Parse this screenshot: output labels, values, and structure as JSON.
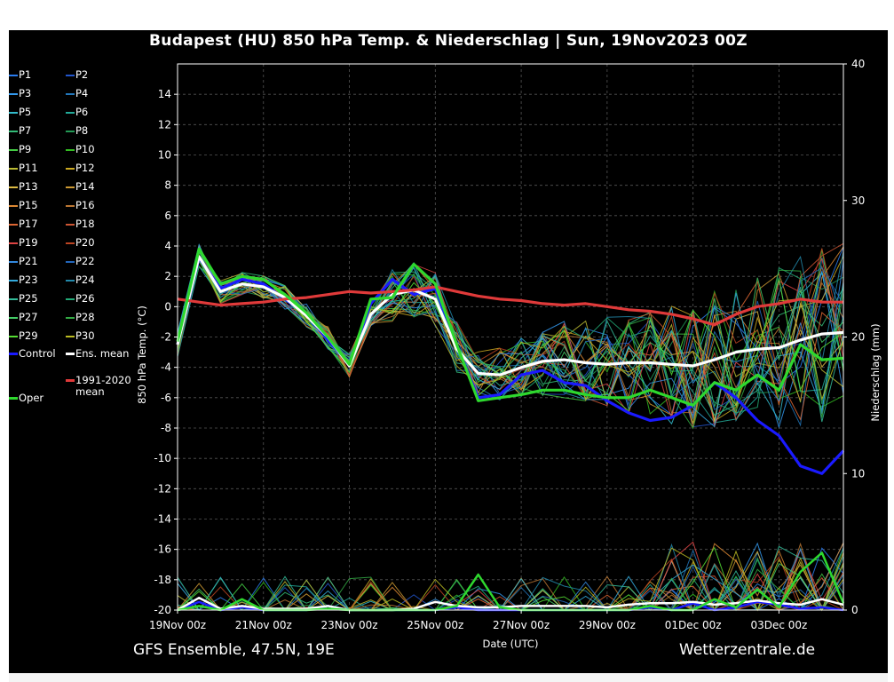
{
  "chart_data": {
    "type": "line",
    "title": "Budapest  (HU)  850 hPa Temp. & Niederschlag | Sun, 19Nov2023 00Z",
    "xlabel": "Date (UTC)",
    "ylabel": "850 hPa Temp. (°C)",
    "y2label": "Niederschlag (mm)",
    "x_range_days": [
      0,
      15.5
    ],
    "x_ticks": [
      {
        "day": 0,
        "label": "19Nov 00z"
      },
      {
        "day": 2,
        "label": "21Nov 00z"
      },
      {
        "day": 4,
        "label": "23Nov 00z"
      },
      {
        "day": 6,
        "label": "25Nov 00z"
      },
      {
        "day": 8,
        "label": "27Nov 00z"
      },
      {
        "day": 10,
        "label": "29Nov 00z"
      },
      {
        "day": 12,
        "label": "01Dec 00z"
      },
      {
        "day": 14,
        "label": "03Dec 00z"
      }
    ],
    "ylim": [
      -20,
      16
    ],
    "y_ticks": [
      14,
      12,
      10,
      8,
      6,
      4,
      2,
      0,
      -2,
      -4,
      -6,
      -8,
      -10,
      -12,
      -14,
      -16,
      -18,
      -20
    ],
    "y2lim": [
      0,
      40
    ],
    "y2_ticks": [
      0,
      10,
      20,
      30,
      40
    ],
    "grid": true,
    "legend_position": "left",
    "series": [
      {
        "name": "Control",
        "color": "#1a1aff",
        "type": "temperature",
        "x": [
          0,
          0.5,
          1,
          1.5,
          2,
          2.5,
          3,
          3.5,
          4,
          4.5,
          5,
          5.5,
          6,
          6.5,
          7,
          7.5,
          8,
          8.5,
          9,
          9.5,
          10,
          10.5,
          11,
          11.5,
          12,
          12.5,
          13,
          13.5,
          14,
          14.5,
          15,
          15.5
        ],
        "values": [
          -2.5,
          3.2,
          1.2,
          1.8,
          1.5,
          0.5,
          -0.5,
          -2.2,
          -3.8,
          0.2,
          1.8,
          0.8,
          1.2,
          -2.5,
          -6.0,
          -5.8,
          -4.5,
          -4.2,
          -5.0,
          -5.2,
          -6.2,
          -7.0,
          -7.5,
          -7.3,
          -6.5,
          -5.0,
          -6.0,
          -7.5,
          -8.5,
          -10.5,
          -11.0,
          -9.5
        ]
      },
      {
        "name": "Ens. mean",
        "color": "#ffffff",
        "type": "temperature",
        "x": [
          0,
          0.5,
          1,
          1.5,
          2,
          2.5,
          3,
          3.5,
          4,
          4.5,
          5,
          5.5,
          6,
          6.5,
          7,
          7.5,
          8,
          8.5,
          9,
          9.5,
          10,
          10.5,
          11,
          11.5,
          12,
          12.5,
          13,
          13.5,
          14,
          14.5,
          15,
          15.5
        ],
        "values": [
          -2.5,
          3.3,
          1.0,
          1.5,
          1.3,
          0.6,
          -0.6,
          -2.0,
          -3.9,
          -0.5,
          0.8,
          1.1,
          0.5,
          -2.8,
          -4.4,
          -4.5,
          -4.0,
          -3.6,
          -3.5,
          -3.7,
          -3.8,
          -3.7,
          -3.7,
          -3.8,
          -3.9,
          -3.5,
          -3.0,
          -2.8,
          -2.7,
          -2.2,
          -1.8,
          -1.7
        ]
      },
      {
        "name": "1991-2020 mean",
        "color": "#e03a3a",
        "type": "temperature",
        "x": [
          0,
          0.5,
          1,
          1.5,
          2,
          2.5,
          3,
          3.5,
          4,
          4.5,
          5,
          5.5,
          6,
          6.5,
          7,
          7.5,
          8,
          8.5,
          9,
          9.5,
          10,
          10.5,
          11,
          11.5,
          12,
          12.5,
          13,
          13.5,
          14,
          14.5,
          15,
          15.5
        ],
        "values": [
          0.5,
          0.3,
          0.1,
          0.2,
          0.3,
          0.5,
          0.6,
          0.8,
          1.0,
          0.9,
          1.0,
          1.1,
          1.3,
          1.0,
          0.7,
          0.5,
          0.4,
          0.2,
          0.1,
          0.2,
          0.0,
          -0.2,
          -0.3,
          -0.5,
          -0.8,
          -1.2,
          -0.5,
          0.0,
          0.2,
          0.5,
          0.3,
          0.3
        ]
      },
      {
        "name": "Oper",
        "color": "#2ed82e",
        "type": "temperature",
        "x": [
          0,
          0.5,
          1,
          1.5,
          2,
          2.5,
          3,
          3.5,
          4,
          4.5,
          5,
          5.5,
          6,
          6.5,
          7,
          7.5,
          8,
          8.5,
          9,
          9.5,
          10,
          10.5,
          11,
          11.5,
          12,
          12.5,
          13,
          13.5,
          14,
          14.5,
          15,
          15.5
        ],
        "values": [
          -2.3,
          3.8,
          1.5,
          2.0,
          1.8,
          0.8,
          -0.4,
          -2.0,
          -3.8,
          0.5,
          0.6,
          2.8,
          1.5,
          -2.5,
          -6.2,
          -6.0,
          -5.8,
          -5.5,
          -5.5,
          -5.8,
          -6.0,
          -6.0,
          -5.5,
          -6.0,
          -6.5,
          -5.0,
          -5.5,
          -4.5,
          -5.5,
          -2.5,
          -3.5,
          -3.4
        ]
      },
      {
        "name": "Control precipitation",
        "color": "#1a1aff",
        "type": "precipitation",
        "x": [
          0,
          0.5,
          1,
          1.5,
          2,
          2.5,
          3,
          3.5,
          4,
          4.5,
          5,
          5.5,
          6,
          6.5,
          7,
          7.5,
          8,
          8.5,
          9,
          9.5,
          10,
          10.5,
          11,
          11.5,
          12,
          12.5,
          13,
          13.5,
          14,
          14.5,
          15,
          15.5
        ],
        "values": [
          0,
          0.6,
          0,
          0.2,
          0,
          0,
          0,
          0.3,
          0,
          0,
          0,
          0,
          0,
          0.2,
          0,
          0,
          0,
          0,
          0,
          0,
          0,
          0,
          0.2,
          0,
          0.5,
          0,
          0.2,
          0.6,
          0.4,
          0.1,
          0.2,
          0
        ]
      },
      {
        "name": "Ens. mean precipitation",
        "color": "#ffffff",
        "type": "precipitation",
        "x": [
          0,
          0.5,
          1,
          1.5,
          2,
          2.5,
          3,
          3.5,
          4,
          4.5,
          5,
          5.5,
          6,
          6.5,
          7,
          7.5,
          8,
          8.5,
          9,
          9.5,
          10,
          10.5,
          11,
          11.5,
          12,
          12.5,
          13,
          13.5,
          14,
          14.5,
          15,
          15.5
        ],
        "values": [
          0,
          0.9,
          0.1,
          0.3,
          0.1,
          0.1,
          0.1,
          0.3,
          0,
          0,
          0,
          0.1,
          0.6,
          0.3,
          0.2,
          0.2,
          0.3,
          0.3,
          0.3,
          0.3,
          0.2,
          0.4,
          0.5,
          0.5,
          0.6,
          0.4,
          0.5,
          0.7,
          0.5,
          0.4,
          0.8,
          0.4
        ]
      },
      {
        "name": "Oper precipitation",
        "color": "#2ed82e",
        "type": "precipitation",
        "x": [
          0,
          0.5,
          1,
          1.5,
          2,
          2.5,
          3,
          3.5,
          4,
          4.5,
          5,
          5.5,
          6,
          6.5,
          7,
          7.5,
          8,
          8.5,
          9,
          9.5,
          10,
          10.5,
          11,
          11.5,
          12,
          12.5,
          13,
          13.5,
          14,
          14.5,
          15,
          15.5
        ],
        "values": [
          0,
          0.3,
          0,
          0.8,
          0,
          0,
          0,
          0.1,
          0,
          0,
          0,
          0,
          0,
          0.3,
          2.6,
          0.2,
          0,
          0,
          0,
          0,
          0,
          0,
          0.3,
          0,
          0,
          0.8,
          0.2,
          1.5,
          0.2,
          2.8,
          4.2,
          0.5
        ]
      }
    ]
  },
  "legend": {
    "members": [
      {
        "label": "P1",
        "color": "#2a7df0"
      },
      {
        "label": "P2",
        "color": "#2255cc"
      },
      {
        "label": "P3",
        "color": "#3399ee"
      },
      {
        "label": "P4",
        "color": "#2277bb"
      },
      {
        "label": "P5",
        "color": "#33bbcc"
      },
      {
        "label": "P6",
        "color": "#22aa99"
      },
      {
        "label": "P7",
        "color": "#33bb77"
      },
      {
        "label": "P8",
        "color": "#229955"
      },
      {
        "label": "P9",
        "color": "#44cc44"
      },
      {
        "label": "P10",
        "color": "#33bb22"
      },
      {
        "label": "P11",
        "color": "#bbbb33"
      },
      {
        "label": "P12",
        "color": "#ccaa22"
      },
      {
        "label": "P13",
        "color": "#ddbb44"
      },
      {
        "label": "P14",
        "color": "#cc9933"
      },
      {
        "label": "P15",
        "color": "#dd8833"
      },
      {
        "label": "P16",
        "color": "#bb7733"
      },
      {
        "label": "P17",
        "color": "#dd6633"
      },
      {
        "label": "P18",
        "color": "#cc5533"
      },
      {
        "label": "P19",
        "color": "#dd4444"
      },
      {
        "label": "P20",
        "color": "#bb4422"
      },
      {
        "label": "P21",
        "color": "#3388dd"
      },
      {
        "label": "P22",
        "color": "#2266bb"
      },
      {
        "label": "P23",
        "color": "#33aadd"
      },
      {
        "label": "P24",
        "color": "#2288aa"
      },
      {
        "label": "P25",
        "color": "#33bb99"
      },
      {
        "label": "P26",
        "color": "#22aa77"
      },
      {
        "label": "P27",
        "color": "#44cc66"
      },
      {
        "label": "P28",
        "color": "#33aa44"
      },
      {
        "label": "P29",
        "color": "#55dd33"
      },
      {
        "label": "P30",
        "color": "#bbbb22"
      }
    ],
    "control": {
      "label": "Control",
      "color": "#1a1aff"
    },
    "ens_mean": {
      "label": "Ens. mean",
      "color": "#ffffff"
    },
    "clim_line1": "1991-2020",
    "clim_line2": "mean",
    "clim_color": "#e03a3a",
    "oper": {
      "label": "Oper",
      "color": "#2ed82e"
    }
  },
  "footer": {
    "left": "GFS Ensemble, 47.5N, 19E",
    "right": "Wetterzentrale.de"
  }
}
